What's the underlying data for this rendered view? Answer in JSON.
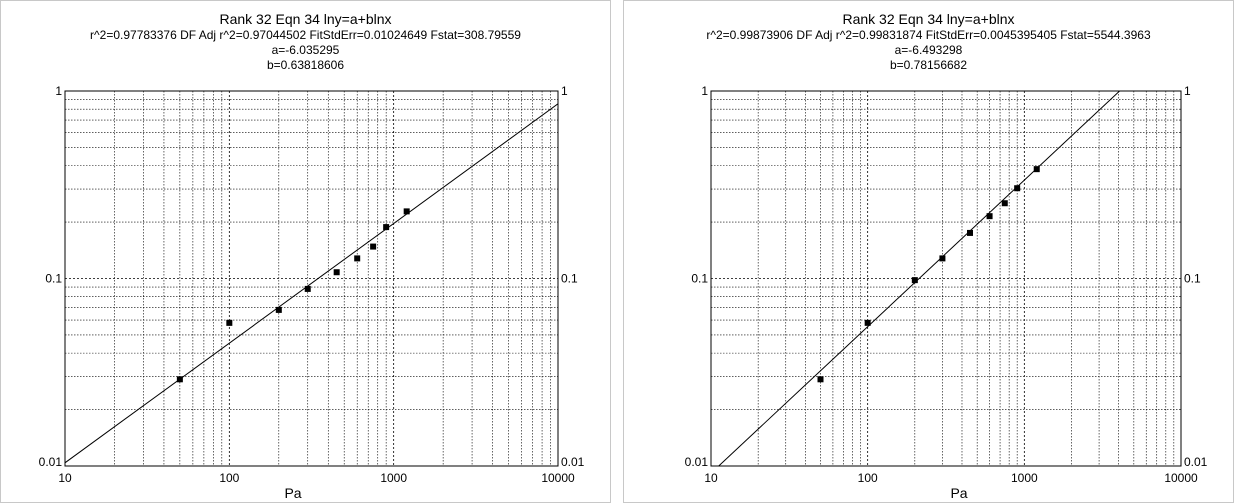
{
  "chart_data": [
    {
      "type": "scatter",
      "title": "Rank 32  Eqn 34  lny=a+blnx",
      "stats_line": "r^2=0.97783376  DF Adj r^2=0.97044502  FitStdErr=0.01024649  Fstat=308.79559",
      "param_a": "a=-6.035295",
      "param_b": "b=0.63818606",
      "xlabel": "Pa",
      "ylabel": "",
      "x_scale": "log",
      "y_scale": "log",
      "xlim": [
        10,
        10000
      ],
      "ylim": [
        0.01,
        1
      ],
      "x_ticks": [
        "10",
        "100",
        "1000",
        "10000"
      ],
      "y_ticks_left": [
        "1",
        "0.1",
        "0.01"
      ],
      "y_ticks_right": [
        "1",
        "0.1",
        "0.01"
      ],
      "grid": true,
      "fit": {
        "a": -6.035295,
        "b": 0.63818606
      },
      "x": [
        50,
        100,
        200,
        300,
        450,
        600,
        750,
        900,
        1200
      ],
      "y": [
        0.029,
        0.058,
        0.068,
        0.088,
        0.108,
        0.128,
        0.148,
        0.188,
        0.228
      ]
    },
    {
      "type": "scatter",
      "title": "Rank 32  Eqn 34  lny=a+blnx",
      "stats_line": "r^2=0.99873906  DF Adj r^2=0.99831874  FitStdErr=0.0045395405  Fstat=5544.3963",
      "param_a": "a=-6.493298",
      "param_b": "b=0.78156682",
      "xlabel": "Pa",
      "ylabel": "",
      "x_scale": "log",
      "y_scale": "log",
      "xlim": [
        10,
        10000
      ],
      "ylim": [
        0.01,
        1
      ],
      "x_ticks": [
        "10",
        "100",
        "1000",
        "10000"
      ],
      "y_ticks_left": [
        "1",
        "0.1",
        "0.01"
      ],
      "y_ticks_right": [
        "1",
        "0.1",
        "0.01"
      ],
      "grid": true,
      "fit": {
        "a": -6.493298,
        "b": 0.78156682
      },
      "x": [
        50,
        100,
        200,
        300,
        450,
        600,
        750,
        900,
        1200
      ],
      "y": [
        0.029,
        0.058,
        0.098,
        0.128,
        0.175,
        0.215,
        0.252,
        0.303,
        0.383
      ]
    }
  ]
}
